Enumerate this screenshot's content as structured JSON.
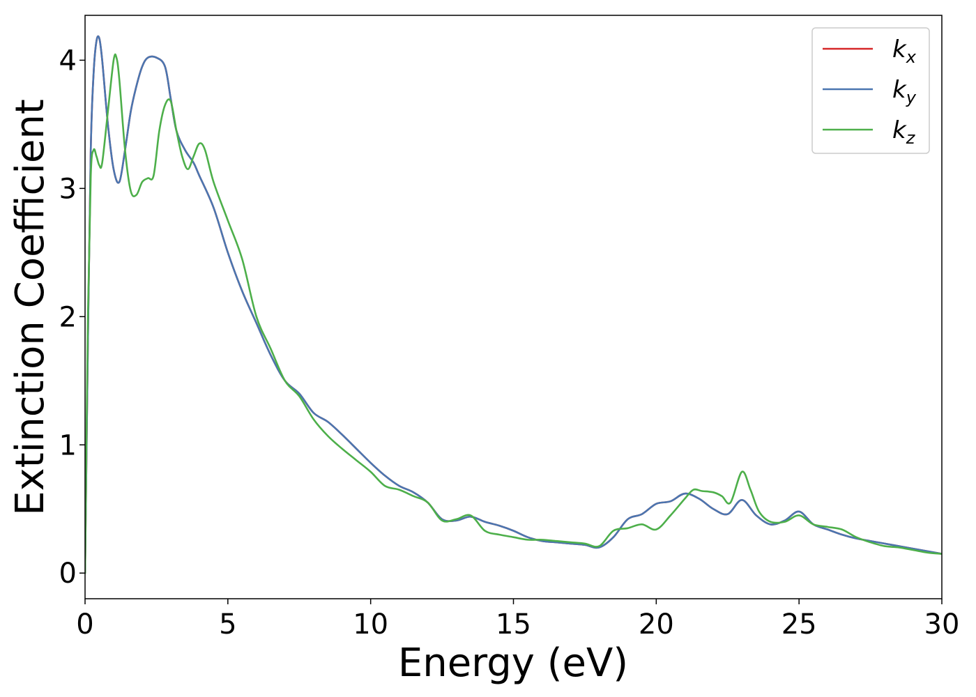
{
  "chart_data": {
    "type": "line",
    "xlabel": "Energy (eV)",
    "ylabel": "Extinction Coefficient",
    "xlim": [
      0,
      30
    ],
    "ylim": [
      -0.2,
      4.35
    ],
    "xticks": [
      0,
      5,
      10,
      15,
      20,
      25,
      30
    ],
    "yticks": [
      0,
      1,
      2,
      3,
      4
    ],
    "grid": false,
    "legend_position": "top-right",
    "series": [
      {
        "name": "k",
        "subscript": "x",
        "color": "#d62728",
        "x": [
          0,
          0.1,
          0.2,
          0.3,
          0.4,
          0.5,
          0.6,
          0.8,
          1.0,
          1.2,
          1.4,
          1.6,
          1.8,
          2.0,
          2.2,
          2.5,
          2.8,
          3.0,
          3.2,
          3.5,
          3.8,
          4.0,
          4.5,
          5.0,
          5.5,
          6.0,
          6.5,
          7.0,
          7.5,
          8.0,
          8.5,
          9.0,
          9.5,
          10.0,
          10.5,
          11.0,
          11.5,
          12.0,
          12.5,
          13.0,
          13.5,
          14.0,
          14.5,
          15.0,
          15.5,
          16.0,
          16.5,
          17.0,
          17.5,
          18.0,
          18.5,
          19.0,
          19.5,
          20.0,
          20.5,
          21.0,
          21.5,
          22.0,
          22.5,
          23.0,
          23.5,
          24.0,
          24.5,
          25.0,
          25.5,
          26.0,
          26.5,
          27.0,
          27.5,
          28.0,
          28.5,
          29.0,
          29.5,
          30.0
        ],
        "y": [
          0.0,
          1.8,
          3.3,
          3.9,
          4.15,
          4.17,
          4.0,
          3.5,
          3.15,
          3.05,
          3.3,
          3.6,
          3.8,
          3.95,
          4.02,
          4.02,
          3.95,
          3.7,
          3.45,
          3.3,
          3.2,
          3.1,
          2.85,
          2.5,
          2.2,
          1.95,
          1.7,
          1.5,
          1.4,
          1.25,
          1.18,
          1.08,
          0.97,
          0.86,
          0.76,
          0.68,
          0.63,
          0.55,
          0.42,
          0.41,
          0.44,
          0.4,
          0.37,
          0.33,
          0.28,
          0.25,
          0.24,
          0.23,
          0.22,
          0.2,
          0.28,
          0.42,
          0.46,
          0.54,
          0.56,
          0.62,
          0.58,
          0.5,
          0.46,
          0.57,
          0.45,
          0.38,
          0.41,
          0.48,
          0.38,
          0.34,
          0.3,
          0.27,
          0.25,
          0.23,
          0.21,
          0.19,
          0.17,
          0.15
        ]
      },
      {
        "name": "k",
        "subscript": "y",
        "color": "#4a76b0",
        "x": [
          0,
          0.1,
          0.2,
          0.3,
          0.4,
          0.5,
          0.6,
          0.8,
          1.0,
          1.2,
          1.4,
          1.6,
          1.8,
          2.0,
          2.2,
          2.5,
          2.8,
          3.0,
          3.2,
          3.5,
          3.8,
          4.0,
          4.5,
          5.0,
          5.5,
          6.0,
          6.5,
          7.0,
          7.5,
          8.0,
          8.5,
          9.0,
          9.5,
          10.0,
          10.5,
          11.0,
          11.5,
          12.0,
          12.5,
          13.0,
          13.5,
          14.0,
          14.5,
          15.0,
          15.5,
          16.0,
          16.5,
          17.0,
          17.5,
          18.0,
          18.5,
          19.0,
          19.5,
          20.0,
          20.5,
          21.0,
          21.5,
          22.0,
          22.5,
          23.0,
          23.5,
          24.0,
          24.5,
          25.0,
          25.5,
          26.0,
          26.5,
          27.0,
          27.5,
          28.0,
          28.5,
          29.0,
          29.5,
          30.0
        ],
        "y": [
          0.0,
          1.8,
          3.3,
          3.9,
          4.15,
          4.17,
          4.0,
          3.5,
          3.15,
          3.05,
          3.3,
          3.6,
          3.8,
          3.95,
          4.02,
          4.02,
          3.95,
          3.7,
          3.45,
          3.3,
          3.2,
          3.1,
          2.85,
          2.5,
          2.2,
          1.95,
          1.7,
          1.5,
          1.4,
          1.25,
          1.18,
          1.08,
          0.97,
          0.86,
          0.76,
          0.68,
          0.63,
          0.55,
          0.42,
          0.41,
          0.44,
          0.4,
          0.37,
          0.33,
          0.28,
          0.25,
          0.24,
          0.23,
          0.22,
          0.2,
          0.28,
          0.42,
          0.46,
          0.54,
          0.56,
          0.62,
          0.58,
          0.5,
          0.46,
          0.57,
          0.45,
          0.38,
          0.41,
          0.48,
          0.38,
          0.34,
          0.3,
          0.27,
          0.25,
          0.23,
          0.21,
          0.19,
          0.17,
          0.15
        ]
      },
      {
        "name": "k",
        "subscript": "z",
        "color": "#4daf4a",
        "x": [
          0,
          0.1,
          0.2,
          0.3,
          0.4,
          0.5,
          0.6,
          0.8,
          1.0,
          1.1,
          1.2,
          1.4,
          1.6,
          1.8,
          2.0,
          2.2,
          2.4,
          2.6,
          2.8,
          3.0,
          3.2,
          3.4,
          3.6,
          3.8,
          4.0,
          4.2,
          4.5,
          5.0,
          5.5,
          6.0,
          6.5,
          7.0,
          7.5,
          8.0,
          8.5,
          9.0,
          9.5,
          10.0,
          10.5,
          11.0,
          11.5,
          12.0,
          12.5,
          13.0,
          13.5,
          14.0,
          14.5,
          15.0,
          15.5,
          16.0,
          16.5,
          17.0,
          17.5,
          18.0,
          18.5,
          19.0,
          19.5,
          20.0,
          20.5,
          21.0,
          21.3,
          21.6,
          22.0,
          22.3,
          22.6,
          23.0,
          23.3,
          23.6,
          24.0,
          24.5,
          25.0,
          25.5,
          26.0,
          26.5,
          27.0,
          27.5,
          28.0,
          28.5,
          29.0,
          29.5,
          30.0
        ],
        "y": [
          0.0,
          2.0,
          3.1,
          3.3,
          3.25,
          3.18,
          3.2,
          3.6,
          4.0,
          4.02,
          3.85,
          3.3,
          2.98,
          2.95,
          3.05,
          3.08,
          3.1,
          3.45,
          3.65,
          3.68,
          3.45,
          3.25,
          3.15,
          3.25,
          3.35,
          3.3,
          3.05,
          2.75,
          2.45,
          2.0,
          1.75,
          1.5,
          1.38,
          1.2,
          1.07,
          0.97,
          0.88,
          0.79,
          0.68,
          0.65,
          0.6,
          0.55,
          0.41,
          0.42,
          0.45,
          0.33,
          0.3,
          0.28,
          0.26,
          0.26,
          0.25,
          0.24,
          0.23,
          0.21,
          0.33,
          0.35,
          0.38,
          0.34,
          0.45,
          0.58,
          0.65,
          0.64,
          0.63,
          0.6,
          0.55,
          0.79,
          0.65,
          0.48,
          0.4,
          0.4,
          0.45,
          0.38,
          0.36,
          0.34,
          0.28,
          0.24,
          0.21,
          0.2,
          0.18,
          0.16,
          0.15
        ]
      }
    ]
  }
}
